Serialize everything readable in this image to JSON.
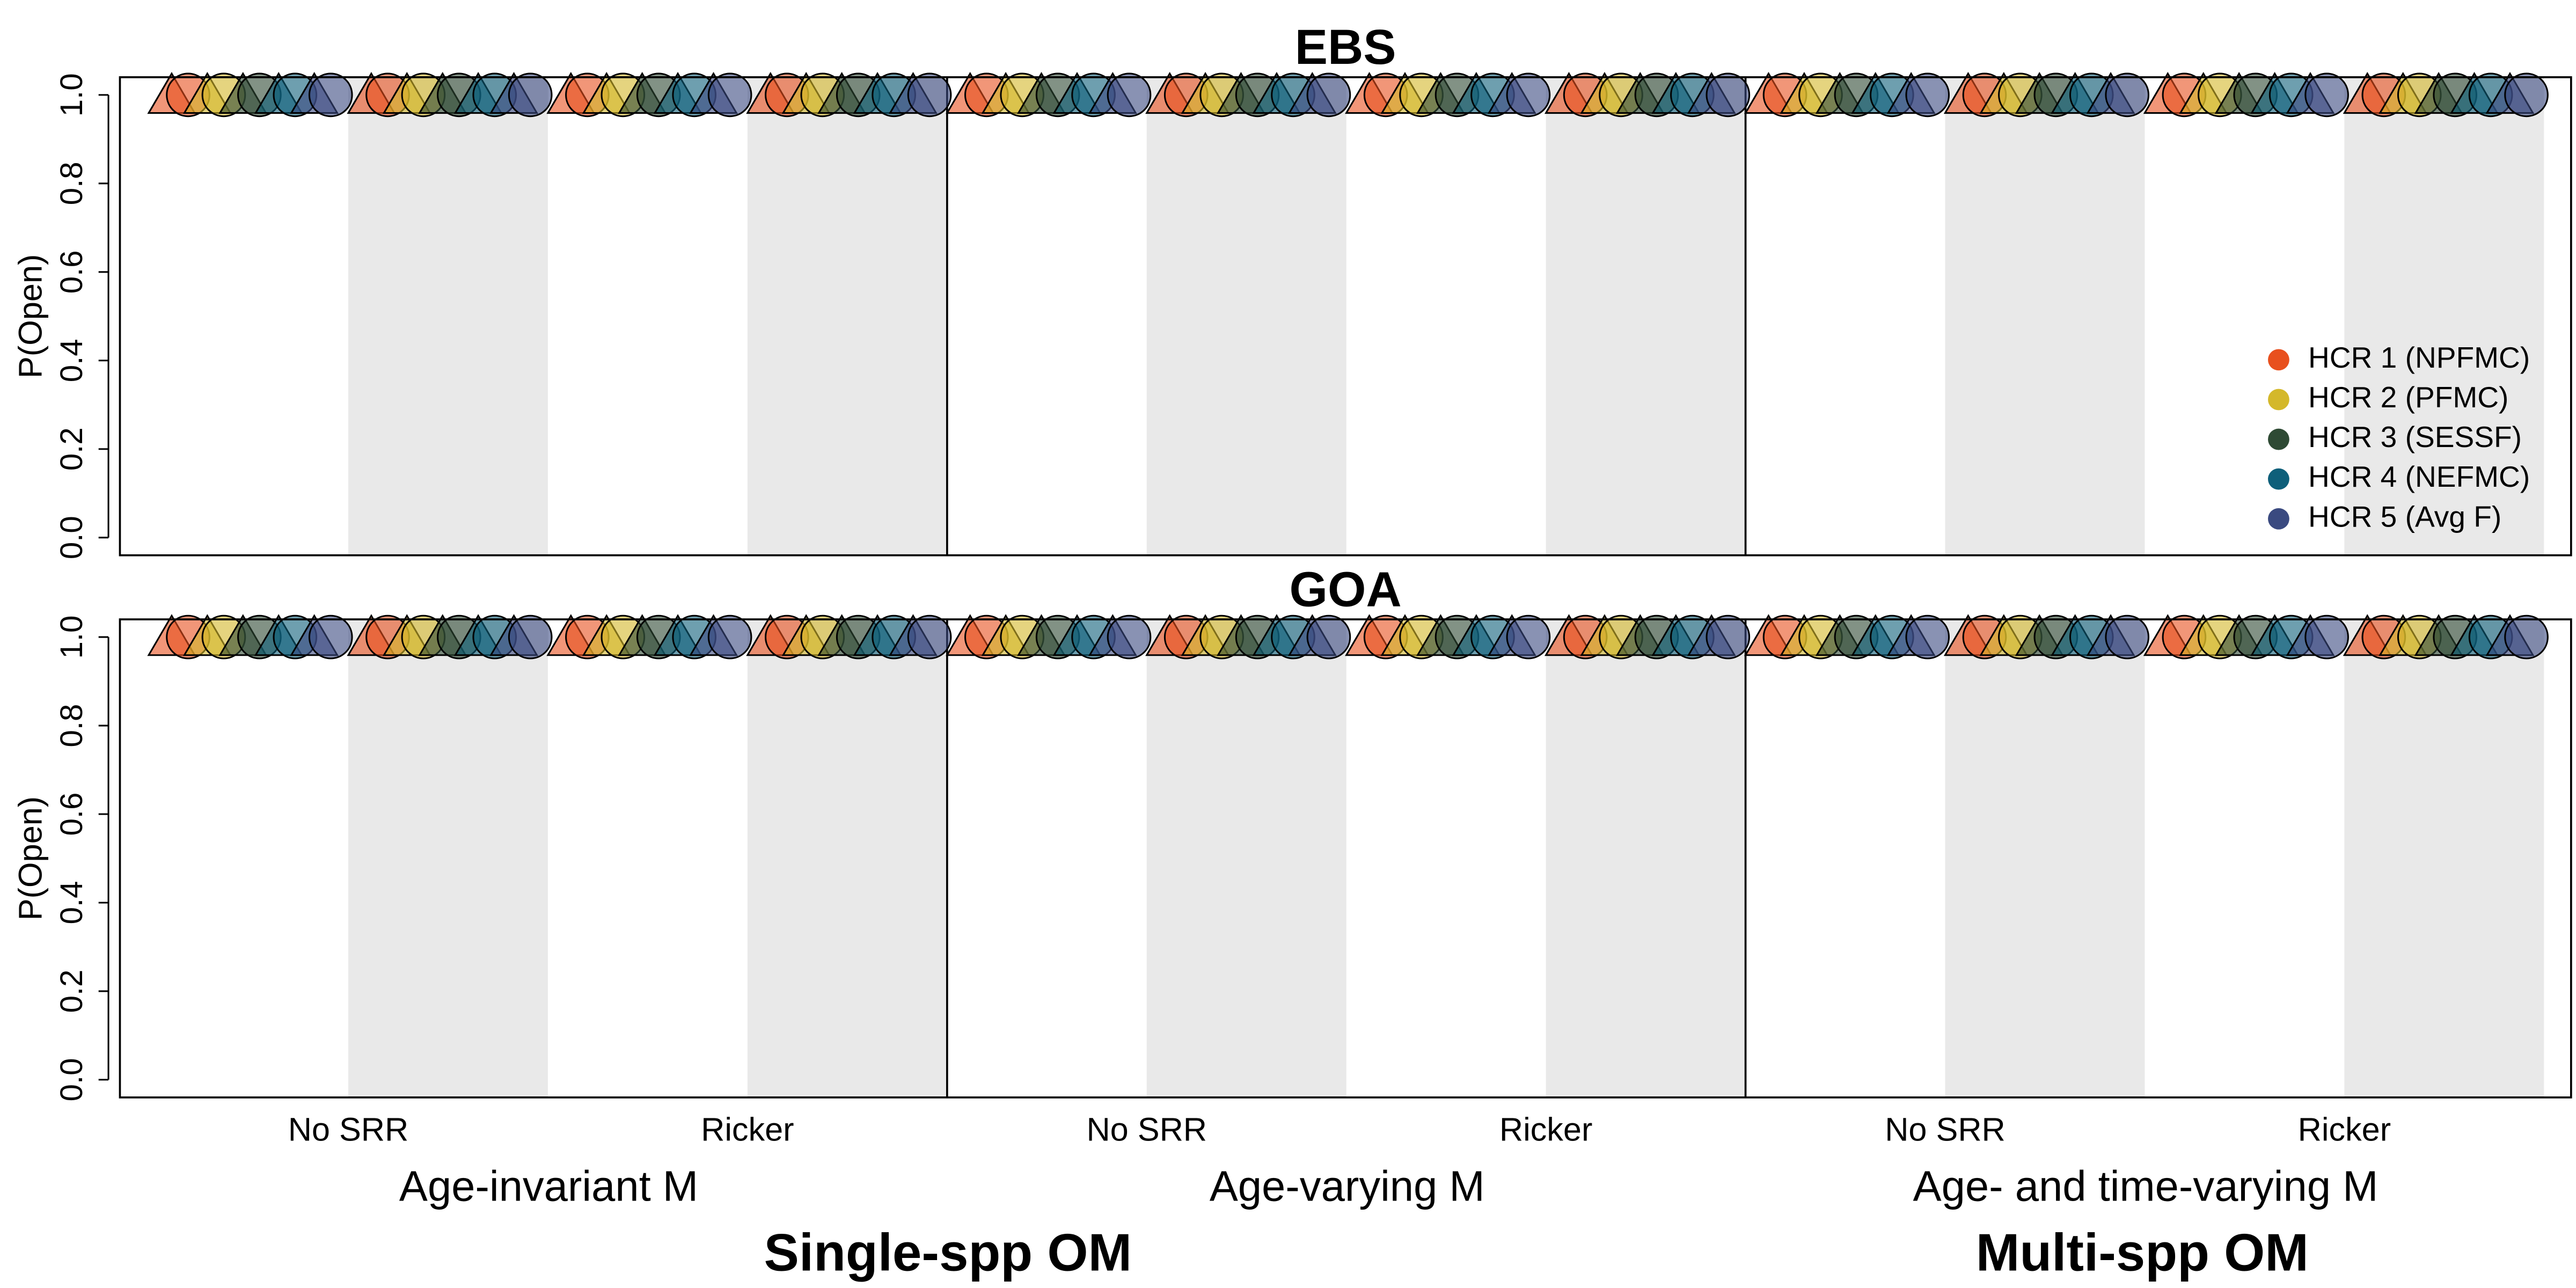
{
  "chart_data": [
    {
      "type": "scatter",
      "title": "EBS",
      "ylabel": "P(Open)",
      "ylim": [
        -0.04,
        1.04
      ],
      "yticks": [
        0.0,
        0.2,
        0.4,
        0.6,
        0.8,
        1.0
      ],
      "legend": "right",
      "series": [
        {
          "name": "HCR 1 (NPFMC)",
          "color": "#e8501e",
          "values": [
            1,
            1,
            1,
            1,
            1,
            1,
            1,
            1,
            1,
            1,
            1,
            1
          ],
          "triangle_values": [
            1,
            1,
            1,
            1,
            1,
            1,
            1,
            1,
            1,
            1,
            1,
            1
          ]
        },
        {
          "name": "HCR 2 (PFMC)",
          "color": "#d4b82a",
          "values": [
            1,
            1,
            1,
            1,
            1,
            1,
            1,
            1,
            1,
            1,
            1,
            1
          ],
          "triangle_values": [
            1,
            1,
            1,
            1,
            1,
            1,
            1,
            1,
            1,
            1,
            1,
            1
          ]
        },
        {
          "name": "HCR 3 (SESSF)",
          "color": "#2e4a34",
          "values": [
            1,
            1,
            1,
            1,
            1,
            1,
            1,
            1,
            1,
            1,
            1,
            1
          ],
          "triangle_values": [
            1,
            1,
            1,
            1,
            1,
            1,
            1,
            1,
            1,
            1,
            1,
            1
          ]
        },
        {
          "name": "HCR 4 (NEFMC)",
          "color": "#0e5f7a",
          "values": [
            1,
            1,
            1,
            1,
            1,
            1,
            1,
            1,
            1,
            1,
            1,
            1
          ],
          "triangle_values": [
            1,
            1,
            1,
            1,
            1,
            1,
            1,
            1,
            1,
            1,
            1,
            1
          ]
        },
        {
          "name": "HCR 5 (Avg F)",
          "color": "#3a4a80",
          "values": [
            1,
            1,
            1,
            1,
            1,
            1,
            1,
            1,
            1,
            1,
            1,
            1
          ],
          "triangle_values": [
            1,
            1,
            1,
            1,
            1,
            1,
            1,
            1,
            1,
            1,
            1,
            1
          ]
        }
      ]
    },
    {
      "type": "scatter",
      "title": "GOA",
      "ylabel": "P(Open)",
      "ylim": [
        -0.04,
        1.04
      ],
      "yticks": [
        0.0,
        0.2,
        0.4,
        0.6,
        0.8,
        1.0
      ],
      "series": [
        {
          "color": "#e8501e",
          "values": [
            1,
            1,
            1,
            1,
            1,
            1,
            1,
            1,
            1,
            1,
            1,
            1
          ],
          "triangle_values": [
            1,
            1,
            1,
            1,
            1,
            1,
            1,
            1,
            1,
            1,
            1,
            1
          ]
        },
        {
          "color": "#d4b82a",
          "values": [
            1,
            1,
            1,
            1,
            1,
            1,
            1,
            1,
            1,
            1,
            1,
            1
          ],
          "triangle_values": [
            1,
            1,
            1,
            1,
            1,
            1,
            1,
            1,
            1,
            1,
            1,
            1
          ]
        },
        {
          "color": "#2e4a34",
          "values": [
            1,
            1,
            1,
            1,
            1,
            1,
            1,
            1,
            1,
            1,
            1,
            1
          ],
          "triangle_values": [
            1,
            1,
            1,
            1,
            1,
            1,
            1,
            1,
            1,
            1,
            1,
            1
          ]
        },
        {
          "color": "#0e5f7a",
          "values": [
            1,
            1,
            1,
            1,
            1,
            1,
            1,
            1,
            1,
            1,
            1,
            1
          ],
          "triangle_values": [
            1,
            1,
            1,
            1,
            1,
            1,
            1,
            1,
            1,
            1,
            1,
            1
          ]
        },
        {
          "color": "#3a4a80",
          "values": [
            1,
            1,
            1,
            1,
            1,
            1,
            1,
            1,
            1,
            1,
            1,
            1
          ],
          "triangle_values": [
            1,
            1,
            1,
            1,
            1,
            1,
            1,
            1,
            1,
            1,
            1,
            1
          ]
        }
      ]
    }
  ],
  "x_axis": {
    "categories": [
      "No SRR",
      "Ricker",
      "No SRR",
      "Ricker",
      "No SRR",
      "Ricker"
    ],
    "groups": [
      "Age-invariant M",
      "Age-varying M",
      "Age- and time-varying M"
    ],
    "super_groups": [
      "Single-spp OM",
      "Multi-spp OM"
    ]
  }
}
